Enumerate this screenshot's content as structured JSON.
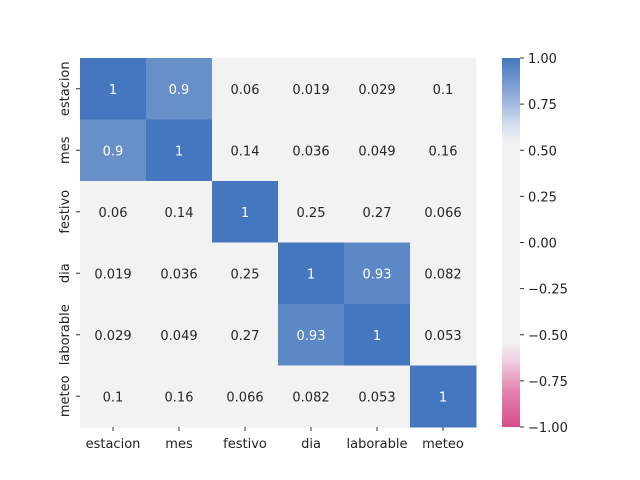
{
  "chart_data": {
    "type": "heatmap",
    "title": "",
    "xlabel": "",
    "ylabel": "",
    "x_categories": [
      "estacion",
      "mes",
      "festivo",
      "dia",
      "laborable",
      "meteo"
    ],
    "y_categories": [
      "estacion",
      "mes",
      "festivo",
      "dia",
      "laborable",
      "meteo"
    ],
    "values": [
      [
        1,
        0.9,
        0.06,
        0.019,
        0.029,
        0.1
      ],
      [
        0.9,
        1,
        0.14,
        0.036,
        0.049,
        0.16
      ],
      [
        0.06,
        0.14,
        1,
        0.25,
        0.27,
        0.066
      ],
      [
        0.019,
        0.036,
        0.25,
        1,
        0.93,
        0.082
      ],
      [
        0.029,
        0.049,
        0.27,
        0.93,
        1,
        0.053
      ],
      [
        0.1,
        0.16,
        0.066,
        0.082,
        0.053,
        1
      ]
    ],
    "annotations": [
      [
        "1",
        "0.9",
        "0.06",
        "0.019",
        "0.029",
        "0.1"
      ],
      [
        "0.9",
        "1",
        "0.14",
        "0.036",
        "0.049",
        "0.16"
      ],
      [
        "0.06",
        "0.14",
        "1",
        "0.25",
        "0.27",
        "0.066"
      ],
      [
        "0.019",
        "0.036",
        "0.25",
        "1",
        "0.93",
        "0.082"
      ],
      [
        "0.029",
        "0.049",
        "0.27",
        "0.93",
        "1",
        "0.053"
      ],
      [
        "0.1",
        "0.16",
        "0.066",
        "0.082",
        "0.053",
        "1"
      ]
    ],
    "vmin": -1,
    "vmax": 1,
    "colormap": "diverging pink-white-blue",
    "colors": {
      "negative": "#d64b8c",
      "neutral": "#f2f2f2",
      "positive": "#4477bf"
    },
    "colorbar": {
      "ticks": [
        1.0,
        0.75,
        0.5,
        0.25,
        0.0,
        -0.25,
        -0.5,
        -0.75,
        -1.0
      ],
      "tick_labels": [
        "1.00",
        "0.75",
        "0.50",
        "0.25",
        "0.00",
        "−0.25",
        "−0.50",
        "−0.75",
        "−1.00"
      ]
    },
    "grid": false,
    "legend": "colorbar-right"
  }
}
